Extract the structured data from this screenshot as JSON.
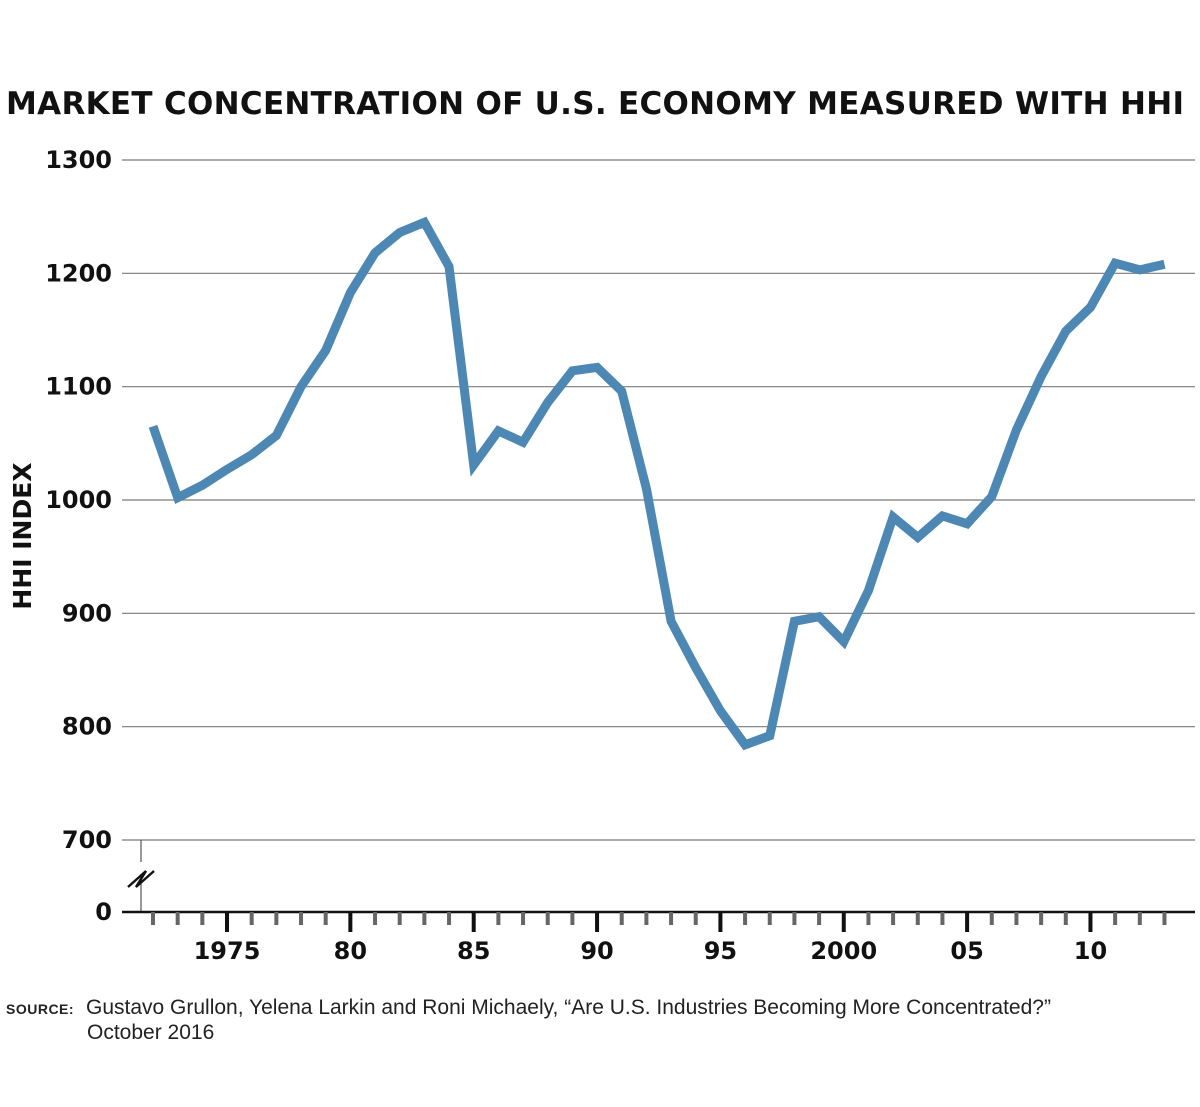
{
  "title": "MARKET CONCENTRATION OF U.S. ECONOMY MEASURED WITH HHI",
  "source": {
    "label": "SOURCE:",
    "line1": "Gustavo Grullon, Yelena Larkin and Roni Michaely, “Are U.S. Industries Becoming More Concentrated?”",
    "line2": "October 2016"
  },
  "chart_data": {
    "type": "line",
    "title": "MARKET CONCENTRATION OF U.S. ECONOMY MEASURED WITH HHI",
    "xlabel": "",
    "ylabel": "HHI INDEX",
    "x_tick_labels": [
      {
        "year": 1975,
        "label": "1975"
      },
      {
        "year": 1980,
        "label": "80"
      },
      {
        "year": 1985,
        "label": "85"
      },
      {
        "year": 1990,
        "label": "90"
      },
      {
        "year": 1995,
        "label": "95"
      },
      {
        "year": 2000,
        "label": "2000"
      },
      {
        "year": 2005,
        "label": "05"
      },
      {
        "year": 2010,
        "label": "10"
      }
    ],
    "y_ticks": [
      0,
      700,
      800,
      900,
      1000,
      1100,
      1200,
      1300
    ],
    "y_axis_break": [
      0,
      700
    ],
    "xlim": [
      1971,
      2014
    ],
    "grid": true,
    "line_color": "#4d87b3",
    "series": [
      {
        "x": [
          1972,
          1973,
          1974,
          1975,
          1976,
          1977,
          1978,
          1979,
          1980,
          1981,
          1982,
          1983,
          1984,
          1985,
          1986,
          1987,
          1988,
          1989,
          1990,
          1991,
          1992,
          1993,
          1994,
          1995,
          1996,
          1997,
          1998,
          1999,
          2000,
          2001,
          2002,
          2003,
          2004,
          2005,
          2006,
          2007,
          2008,
          2009,
          2010,
          2011,
          2012,
          2013
        ],
        "values": [
          1065,
          1002,
          1013,
          1027,
          1040,
          1057,
          1100,
          1132,
          1183,
          1218,
          1236,
          1245,
          1206,
          1031,
          1061,
          1051,
          1086,
          1114,
          1117,
          1096,
          1010,
          893,
          852,
          814,
          784,
          792,
          893,
          897,
          875,
          920,
          985,
          967,
          986,
          979,
          1003,
          1062,
          1109,
          1149,
          1170,
          1209,
          1203,
          1208
        ]
      }
    ]
  }
}
